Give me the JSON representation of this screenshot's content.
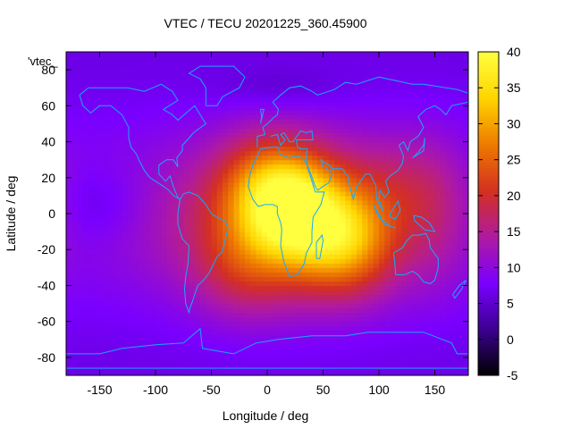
{
  "chart_data": {
    "type": "heatmap",
    "title": "VTEC / TECU 20201225_360.45900",
    "xlabel": "Longitude / deg",
    "ylabel": "Latitude / deg",
    "legend_key": "'vtec_",
    "xlim": [
      -180,
      180
    ],
    "ylim": [
      -90,
      90
    ],
    "x_ticks": [
      -150,
      -100,
      -50,
      0,
      50,
      100,
      150
    ],
    "y_ticks": [
      -80,
      -60,
      -40,
      -20,
      0,
      20,
      40,
      60,
      80
    ],
    "colorbar": {
      "range": [
        -5,
        40
      ],
      "ticks": [
        -5,
        0,
        5,
        10,
        15,
        20,
        25,
        30,
        35,
        40
      ]
    },
    "colormap": [
      "#000000",
      "#3b0090",
      "#7a00ff",
      "#b01aa0",
      "#d43020",
      "#ee7a00",
      "#ffd400",
      "#ffff40"
    ],
    "background_level_tecu": 8,
    "tec_peaks": [
      {
        "lon": 25,
        "lat": 2,
        "tecu": 38
      },
      {
        "lon": 70,
        "lat": -15,
        "tecu": 35
      },
      {
        "lon": 0,
        "lat": 15,
        "tecu": 31
      },
      {
        "lon": -20,
        "lat": -30,
        "tecu": 26
      },
      {
        "lon": 120,
        "lat": 15,
        "tecu": 24
      }
    ],
    "coastline_color": "#18a8ff"
  }
}
